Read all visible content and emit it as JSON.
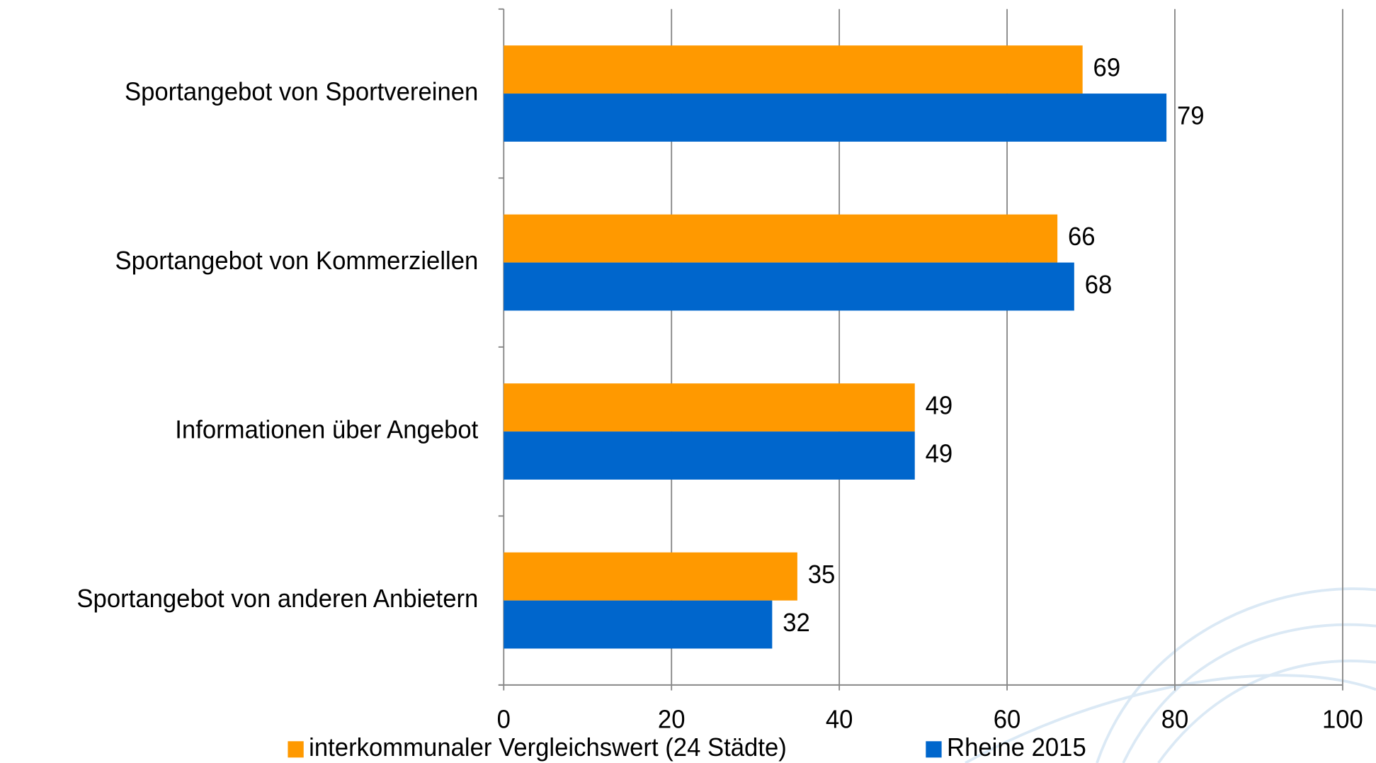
{
  "chart_data": {
    "type": "hbar",
    "categories": [
      "Sportangebot von Sportvereinen",
      "Sportangebot von Kommerziellen",
      "Informationen über Angebot",
      "Sportangebot von anderen Anbietern"
    ],
    "series": [
      {
        "name": "interkommunaler Vergleichswert (24 Städte)",
        "color": "#ff9900",
        "values": [
          69,
          66,
          49,
          35
        ]
      },
      {
        "name": "Rheine 2015",
        "color": "#0066cc",
        "values": [
          79,
          68,
          49,
          32
        ]
      }
    ],
    "xlim": [
      0,
      100
    ],
    "xticks": [
      0,
      20,
      40,
      60,
      80,
      100
    ],
    "grid": true,
    "legend": "bottom"
  }
}
